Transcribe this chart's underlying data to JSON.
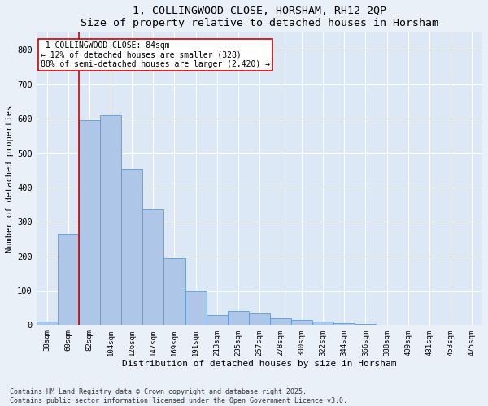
{
  "title": "1, COLLINGWOOD CLOSE, HORSHAM, RH12 2QP",
  "subtitle": "Size of property relative to detached houses in Horsham",
  "xlabel": "Distribution of detached houses by size in Horsham",
  "ylabel": "Number of detached properties",
  "categories": [
    "38sqm",
    "60sqm",
    "82sqm",
    "104sqm",
    "126sqm",
    "147sqm",
    "169sqm",
    "191sqm",
    "213sqm",
    "235sqm",
    "257sqm",
    "278sqm",
    "300sqm",
    "322sqm",
    "344sqm",
    "366sqm",
    "388sqm",
    "409sqm",
    "431sqm",
    "453sqm",
    "475sqm"
  ],
  "values": [
    10,
    265,
    595,
    610,
    455,
    335,
    195,
    100,
    30,
    40,
    35,
    20,
    15,
    10,
    5,
    3,
    1,
    0,
    0,
    0,
    2
  ],
  "bar_color": "#aec6e8",
  "bar_edge_color": "#5b9bd5",
  "property_line_label": "1 COLLINGWOOD CLOSE: 84sqm",
  "smaller_pct": "12%",
  "smaller_count": "328",
  "larger_pct": "88%",
  "larger_count": "2,420",
  "annotation_box_color": "#ffffff",
  "annotation_box_edge": "#cc0000",
  "property_line_color": "#cc0000",
  "ylim": [
    0,
    850
  ],
  "yticks": [
    0,
    100,
    200,
    300,
    400,
    500,
    600,
    700,
    800
  ],
  "footer": "Contains HM Land Registry data © Crown copyright and database right 2025.\nContains public sector information licensed under the Open Government Licence v3.0.",
  "bg_color": "#eaf0f8",
  "plot_bg_color": "#dce8f5"
}
